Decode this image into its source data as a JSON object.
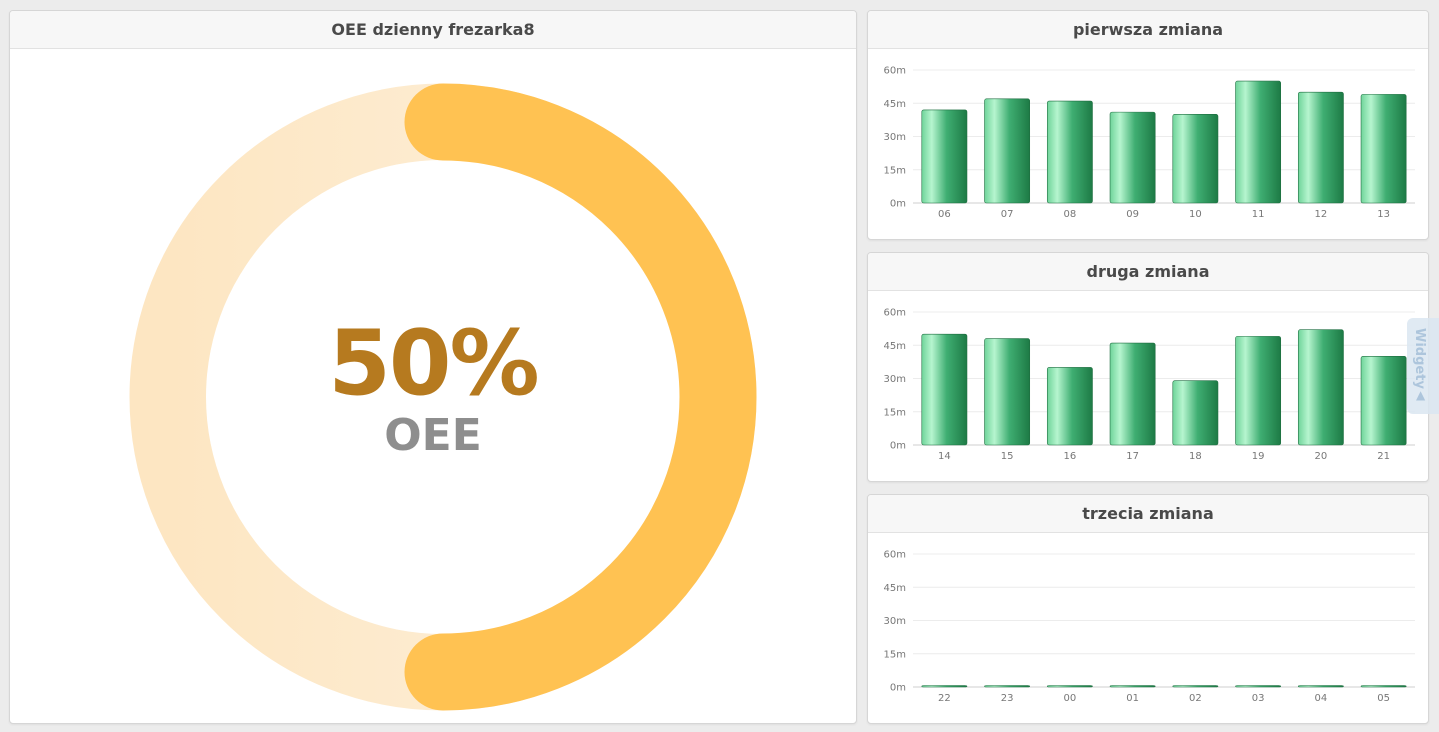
{
  "main_panel": {
    "title": "OEE dzienny frezarka8",
    "value_text": "50%",
    "label": "OEE",
    "oee_fraction": 0.5,
    "colors": {
      "arc_fill": "#ffc252",
      "arc_track": "#fdebd0",
      "value": "#b67a1f",
      "label": "#8e8e8e"
    }
  },
  "widgets_tab": {
    "label": "Widgety",
    "icon": "triangle-up-icon"
  },
  "chart_data": [
    {
      "type": "bar",
      "title": "pierwsza zmiana",
      "categories": [
        "06",
        "07",
        "08",
        "09",
        "10",
        "11",
        "12",
        "13"
      ],
      "values": [
        42,
        47,
        46,
        41,
        40,
        55,
        50,
        49
      ],
      "yticks": [
        "0m",
        "15m",
        "30m",
        "45m",
        "60m"
      ],
      "ylim": [
        0,
        60
      ],
      "grid": true,
      "bar_color": "#3aa56b"
    },
    {
      "type": "bar",
      "title": "druga zmiana",
      "categories": [
        "14",
        "15",
        "16",
        "17",
        "18",
        "19",
        "20",
        "21"
      ],
      "values": [
        50,
        48,
        35,
        46,
        29,
        49,
        52,
        40
      ],
      "yticks": [
        "0m",
        "15m",
        "30m",
        "45m",
        "60m"
      ],
      "ylim": [
        0,
        60
      ],
      "grid": true,
      "bar_color": "#3aa56b"
    },
    {
      "type": "bar",
      "title": "trzecia zmiana",
      "categories": [
        "22",
        "23",
        "00",
        "01",
        "02",
        "03",
        "04",
        "05"
      ],
      "values": [
        0.6,
        0.6,
        0.6,
        0.6,
        0.6,
        0.6,
        0.6,
        0.6
      ],
      "yticks": [
        "0m",
        "15m",
        "30m",
        "45m",
        "60m"
      ],
      "ylim": [
        0,
        60
      ],
      "grid": true,
      "bar_color": "#3aa56b"
    }
  ]
}
